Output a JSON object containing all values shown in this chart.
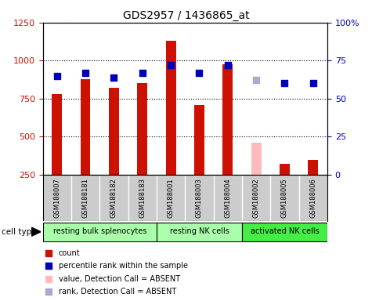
{
  "title": "GDS2957 / 1436865_at",
  "samples": [
    "GSM188007",
    "GSM188181",
    "GSM188182",
    "GSM188183",
    "GSM188001",
    "GSM188003",
    "GSM188004",
    "GSM188002",
    "GSM188005",
    "GSM188006"
  ],
  "count_values": [
    780,
    880,
    820,
    850,
    1130,
    710,
    975,
    null,
    320,
    345
  ],
  "absent_values": [
    null,
    null,
    null,
    null,
    null,
    null,
    null,
    460,
    null,
    null
  ],
  "percentile_values": [
    65,
    67,
    64,
    67,
    72,
    67,
    72,
    null,
    60,
    60
  ],
  "absent_rank_values": [
    null,
    null,
    null,
    null,
    null,
    null,
    null,
    62,
    null,
    null
  ],
  "ylim_left": [
    250,
    1250
  ],
  "ylim_right": [
    0,
    100
  ],
  "yticks_left": [
    250,
    500,
    750,
    1000,
    1250
  ],
  "yticks_right": [
    0,
    25,
    50,
    75,
    100
  ],
  "ytick_labels_right": [
    "0",
    "25",
    "50",
    "75",
    "100%"
  ],
  "bar_color_present": "#cc1100",
  "bar_color_absent": "#ffbbbb",
  "dot_color_present": "#0000bb",
  "dot_color_absent": "#aaaacc",
  "bar_width": 0.35,
  "dot_size": 40,
  "left_axis_color": "#cc1100",
  "right_axis_color": "#0000bb",
  "bg_sample_labels": "#cccccc",
  "cell_type_label": "cell type",
  "groups": [
    {
      "label": "resting bulk splenocytes",
      "start": 0,
      "end": 3,
      "color": "#aaffaa"
    },
    {
      "label": "resting NK cells",
      "start": 4,
      "end": 6,
      "color": "#aaffaa"
    },
    {
      "label": "activated NK cells",
      "start": 7,
      "end": 9,
      "color": "#44ee44"
    }
  ],
  "legend_items": [
    {
      "color": "#cc1100",
      "label": "count"
    },
    {
      "color": "#0000bb",
      "label": "percentile rank within the sample"
    },
    {
      "color": "#ffbbbb",
      "label": "value, Detection Call = ABSENT"
    },
    {
      "color": "#aaaacc",
      "label": "rank, Detection Call = ABSENT"
    }
  ]
}
